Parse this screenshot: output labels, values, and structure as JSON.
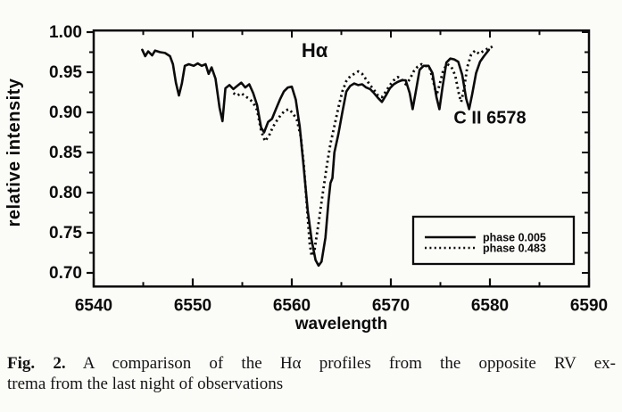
{
  "caption": {
    "fig_label": "Fig. 2.",
    "line1_rest": " A comparison of the Hα profiles from the opposite RV ex-",
    "line2": "trema from the last night of observations"
  },
  "chart_data": {
    "type": "line",
    "title": "",
    "xlabel": "wavelength",
    "ylabel": "relative intensity",
    "axes": {
      "xlim": [
        6540,
        6590
      ],
      "ylim": [
        0.683,
        1.002
      ],
      "grid": false,
      "x_ticks_major": [
        6540,
        6550,
        6560,
        6570,
        6580,
        6590
      ],
      "x_tick_labels": [
        "6540",
        "6550",
        "6560",
        "6570",
        "6580",
        "6590"
      ],
      "x_ticks_minor": [
        6545,
        6555,
        6565,
        6575,
        6585
      ],
      "y_ticks_major": [
        1.0,
        0.95,
        0.9,
        0.85,
        0.8,
        0.75,
        0.7
      ],
      "y_tick_labels": [
        "1.00",
        "0.95",
        "0.90",
        "0.85",
        "0.80",
        "0.75",
        "0.70"
      ],
      "y_ticks_minor": [
        0.975,
        0.925,
        0.875,
        0.825,
        0.775,
        0.725
      ]
    },
    "annotations": [
      {
        "text": "Hα",
        "x": 6562.3,
        "y": 0.969,
        "size": 22
      },
      {
        "text": "C II 6578",
        "x": 6580.0,
        "y": 0.886,
        "size": 20
      }
    ],
    "legend": {
      "position": "lower right",
      "entries": [
        {
          "label": "phase 0.005",
          "style": "solid"
        },
        {
          "label": "phase 0.483",
          "style": "dotted"
        }
      ]
    },
    "series": [
      {
        "name": "phase 0.005",
        "style": "solid",
        "points": [
          [
            6544.9,
            0.978
          ],
          [
            6545.2,
            0.97
          ],
          [
            6545.5,
            0.976
          ],
          [
            6545.9,
            0.971
          ],
          [
            6546.2,
            0.977
          ],
          [
            6546.7,
            0.975
          ],
          [
            6547.2,
            0.974
          ],
          [
            6547.7,
            0.97
          ],
          [
            6548.0,
            0.96
          ],
          [
            6548.3,
            0.937
          ],
          [
            6548.6,
            0.921
          ],
          [
            6548.9,
            0.936
          ],
          [
            6549.2,
            0.958
          ],
          [
            6549.6,
            0.96
          ],
          [
            6550.1,
            0.958
          ],
          [
            6550.5,
            0.961
          ],
          [
            6550.9,
            0.958
          ],
          [
            6551.3,
            0.96
          ],
          [
            6551.6,
            0.948
          ],
          [
            6551.9,
            0.956
          ],
          [
            6552.3,
            0.942
          ],
          [
            6552.7,
            0.906
          ],
          [
            6553.0,
            0.889
          ],
          [
            6553.3,
            0.93
          ],
          [
            6553.7,
            0.934
          ],
          [
            6554.1,
            0.929
          ],
          [
            6554.5,
            0.933
          ],
          [
            6554.9,
            0.937
          ],
          [
            6555.3,
            0.931
          ],
          [
            6555.7,
            0.935
          ],
          [
            6556.1,
            0.924
          ],
          [
            6556.5,
            0.909
          ],
          [
            6556.9,
            0.881
          ],
          [
            6557.2,
            0.875
          ],
          [
            6557.6,
            0.888
          ],
          [
            6558.0,
            0.892
          ],
          [
            6558.4,
            0.904
          ],
          [
            6558.8,
            0.916
          ],
          [
            6559.2,
            0.926
          ],
          [
            6559.6,
            0.931
          ],
          [
            6560.0,
            0.932
          ],
          [
            6560.4,
            0.916
          ],
          [
            6560.8,
            0.882
          ],
          [
            6561.2,
            0.832
          ],
          [
            6561.6,
            0.778
          ],
          [
            6562.0,
            0.741
          ],
          [
            6562.4,
            0.716
          ],
          [
            6562.7,
            0.709
          ],
          [
            6563.0,
            0.714
          ],
          [
            6563.4,
            0.744
          ],
          [
            6563.7,
            0.789
          ],
          [
            6563.9,
            0.812
          ],
          [
            6564.1,
            0.818
          ],
          [
            6564.3,
            0.85
          ],
          [
            6564.7,
            0.873
          ],
          [
            6565.1,
            0.9
          ],
          [
            6565.5,
            0.926
          ],
          [
            6565.9,
            0.933
          ],
          [
            6566.3,
            0.936
          ],
          [
            6566.7,
            0.934
          ],
          [
            6567.1,
            0.935
          ],
          [
            6567.5,
            0.931
          ],
          [
            6567.9,
            0.929
          ],
          [
            6568.3,
            0.924
          ],
          [
            6568.7,
            0.918
          ],
          [
            6569.1,
            0.913
          ],
          [
            6569.5,
            0.921
          ],
          [
            6569.9,
            0.93
          ],
          [
            6570.3,
            0.935
          ],
          [
            6570.7,
            0.938
          ],
          [
            6571.1,
            0.94
          ],
          [
            6571.5,
            0.94
          ],
          [
            6571.9,
            0.924
          ],
          [
            6572.2,
            0.904
          ],
          [
            6572.5,
            0.925
          ],
          [
            6572.9,
            0.953
          ],
          [
            6573.3,
            0.958
          ],
          [
            6573.8,
            0.958
          ],
          [
            6574.2,
            0.949
          ],
          [
            6574.6,
            0.919
          ],
          [
            6574.9,
            0.904
          ],
          [
            6575.2,
            0.93
          ],
          [
            6575.6,
            0.962
          ],
          [
            6576.0,
            0.967
          ],
          [
            6576.4,
            0.966
          ],
          [
            6576.8,
            0.963
          ],
          [
            6577.2,
            0.947
          ],
          [
            6577.6,
            0.917
          ],
          [
            6577.9,
            0.904
          ],
          [
            6578.2,
            0.922
          ],
          [
            6578.6,
            0.949
          ],
          [
            6579.0,
            0.963
          ],
          [
            6579.4,
            0.97
          ],
          [
            6579.9,
            0.978
          ]
        ]
      },
      {
        "name": "phase 0.483",
        "style": "dotted",
        "points": [
          [
            6554.1,
            0.924
          ],
          [
            6554.5,
            0.921
          ],
          [
            6554.9,
            0.924
          ],
          [
            6555.3,
            0.92
          ],
          [
            6555.7,
            0.917
          ],
          [
            6556.1,
            0.912
          ],
          [
            6556.5,
            0.903
          ],
          [
            6556.9,
            0.877
          ],
          [
            6557.3,
            0.864
          ],
          [
            6557.7,
            0.871
          ],
          [
            6558.1,
            0.882
          ],
          [
            6558.5,
            0.89
          ],
          [
            6558.9,
            0.897
          ],
          [
            6559.3,
            0.902
          ],
          [
            6559.7,
            0.904
          ],
          [
            6560.1,
            0.899
          ],
          [
            6560.5,
            0.891
          ],
          [
            6560.9,
            0.87
          ],
          [
            6561.2,
            0.836
          ],
          [
            6561.5,
            0.788
          ],
          [
            6561.8,
            0.737
          ],
          [
            6562.0,
            0.721
          ],
          [
            6562.3,
            0.729
          ],
          [
            6562.7,
            0.762
          ],
          [
            6563.1,
            0.797
          ],
          [
            6563.5,
            0.831
          ],
          [
            6563.9,
            0.861
          ],
          [
            6564.3,
            0.883
          ],
          [
            6564.7,
            0.906
          ],
          [
            6565.1,
            0.926
          ],
          [
            6565.5,
            0.939
          ],
          [
            6565.9,
            0.945
          ],
          [
            6566.3,
            0.948
          ],
          [
            6566.7,
            0.951
          ],
          [
            6567.1,
            0.948
          ],
          [
            6567.5,
            0.941
          ],
          [
            6567.9,
            0.934
          ],
          [
            6568.3,
            0.928
          ],
          [
            6568.7,
            0.921
          ],
          [
            6569.1,
            0.919
          ],
          [
            6569.5,
            0.926
          ],
          [
            6569.9,
            0.934
          ],
          [
            6570.3,
            0.94
          ],
          [
            6570.7,
            0.944
          ],
          [
            6571.1,
            0.941
          ],
          [
            6571.5,
            0.935
          ],
          [
            6571.9,
            0.941
          ],
          [
            6572.3,
            0.951
          ],
          [
            6572.7,
            0.957
          ],
          [
            6573.1,
            0.96
          ],
          [
            6573.5,
            0.958
          ],
          [
            6573.9,
            0.956
          ],
          [
            6574.3,
            0.938
          ],
          [
            6574.6,
            0.921
          ],
          [
            6574.9,
            0.934
          ],
          [
            6575.3,
            0.953
          ],
          [
            6575.7,
            0.96
          ],
          [
            6576.1,
            0.957
          ],
          [
            6576.5,
            0.946
          ],
          [
            6576.9,
            0.921
          ],
          [
            6577.1,
            0.913
          ],
          [
            6577.4,
            0.93
          ],
          [
            6577.7,
            0.956
          ],
          [
            6578.1,
            0.972
          ],
          [
            6578.5,
            0.977
          ],
          [
            6578.9,
            0.973
          ],
          [
            6579.3,
            0.976
          ],
          [
            6579.7,
            0.979
          ],
          [
            6580.1,
            0.981
          ],
          [
            6580.4,
            0.983
          ]
        ]
      }
    ]
  }
}
